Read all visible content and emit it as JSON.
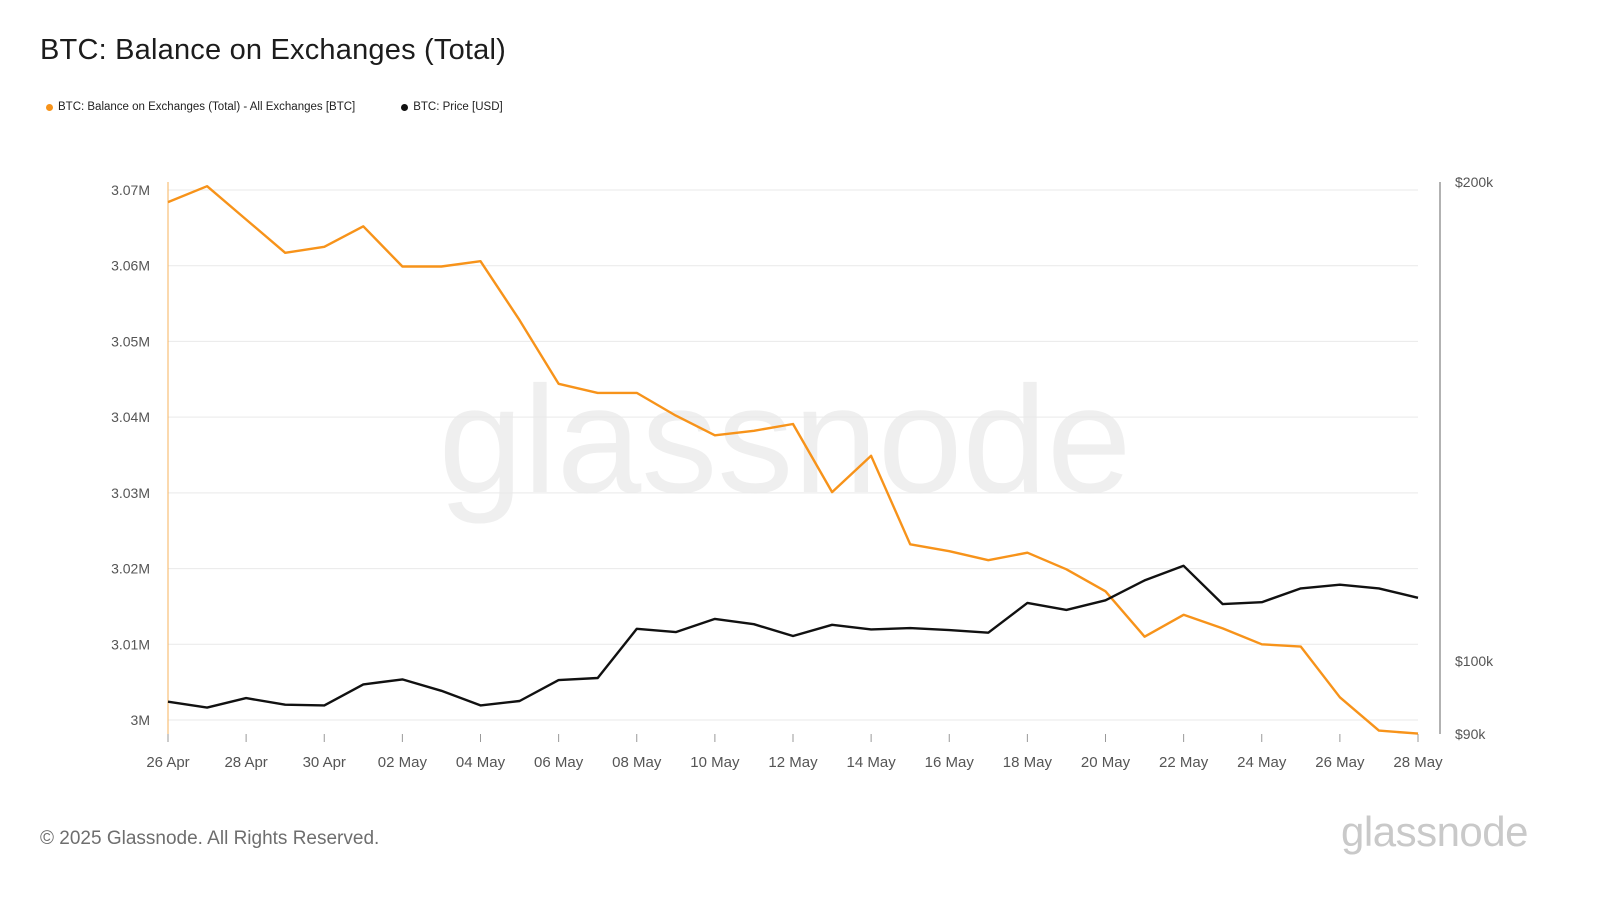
{
  "title": "BTC: Balance on Exchanges (Total)",
  "footer": "© 2025 Glassnode. All Rights Reserved.",
  "brand": "glassnode",
  "watermark": "glassnode",
  "legend": [
    {
      "label": "BTC: Balance on Exchanges (Total) - All Exchanges [BTC]",
      "color": "#f7931a"
    },
    {
      "label": "BTC: Price [USD]",
      "color": "#111111"
    }
  ],
  "chart_data": {
    "type": "line",
    "title": "BTC: Balance on Exchanges (Total)",
    "x": [
      "26 Apr",
      "27 Apr",
      "28 Apr",
      "29 Apr",
      "30 Apr",
      "01 May",
      "02 May",
      "03 May",
      "04 May",
      "05 May",
      "06 May",
      "07 May",
      "08 May",
      "09 May",
      "10 May",
      "11 May",
      "12 May",
      "13 May",
      "14 May",
      "15 May",
      "16 May",
      "17 May",
      "18 May",
      "19 May",
      "20 May",
      "21 May",
      "22 May",
      "23 May",
      "24 May",
      "25 May",
      "26 May",
      "27 May",
      "28 May"
    ],
    "x_tick_labels": [
      "26 Apr",
      "28 Apr",
      "30 Apr",
      "02 May",
      "04 May",
      "06 May",
      "08 May",
      "10 May",
      "12 May",
      "14 May",
      "16 May",
      "18 May",
      "20 May",
      "22 May",
      "24 May",
      "26 May",
      "28 May"
    ],
    "series": [
      {
        "name": "BTC: Balance on Exchanges (Total) - All Exchanges [BTC]",
        "axis": "left",
        "color": "#f7931a",
        "values": [
          3068400,
          3070500,
          3066100,
          3061700,
          3062500,
          3065200,
          3059900,
          3059900,
          3060600,
          3052800,
          3044400,
          3043200,
          3043200,
          3040200,
          3037600,
          3038200,
          3039100,
          3030100,
          3034900,
          3023200,
          3022300,
          3021100,
          3022100,
          3019900,
          3017000,
          3011000,
          3013900,
          3012100,
          3010000,
          3009700,
          3003000,
          2998600,
          2998200
        ]
      },
      {
        "name": "BTC: Price [USD]",
        "axis": "right",
        "color": "#111111",
        "values": [
          94300,
          93500,
          94800,
          93900,
          93800,
          96700,
          97400,
          95800,
          93800,
          94400,
          97300,
          97600,
          104800,
          104300,
          106300,
          105500,
          103700,
          105400,
          104700,
          104900,
          104600,
          104200,
          108800,
          107700,
          109200,
          112400,
          114800,
          108600,
          108900,
          111100,
          111700,
          111100,
          109600
        ]
      }
    ],
    "left_axis": {
      "ticks": [
        3000000,
        3010000,
        3020000,
        3030000,
        3040000,
        3050000,
        3060000,
        3070000
      ],
      "tick_labels": [
        "3M",
        "3.01M",
        "3.02M",
        "3.03M",
        "3.04M",
        "3.05M",
        "3.06M",
        "3.07M"
      ]
    },
    "right_axis": {
      "scale": "log",
      "ticks": [
        90000,
        100000,
        200000
      ],
      "tick_labels": [
        "$90k",
        "$100k",
        "$200k"
      ]
    },
    "grid": true,
    "legend_position": "top-left"
  }
}
